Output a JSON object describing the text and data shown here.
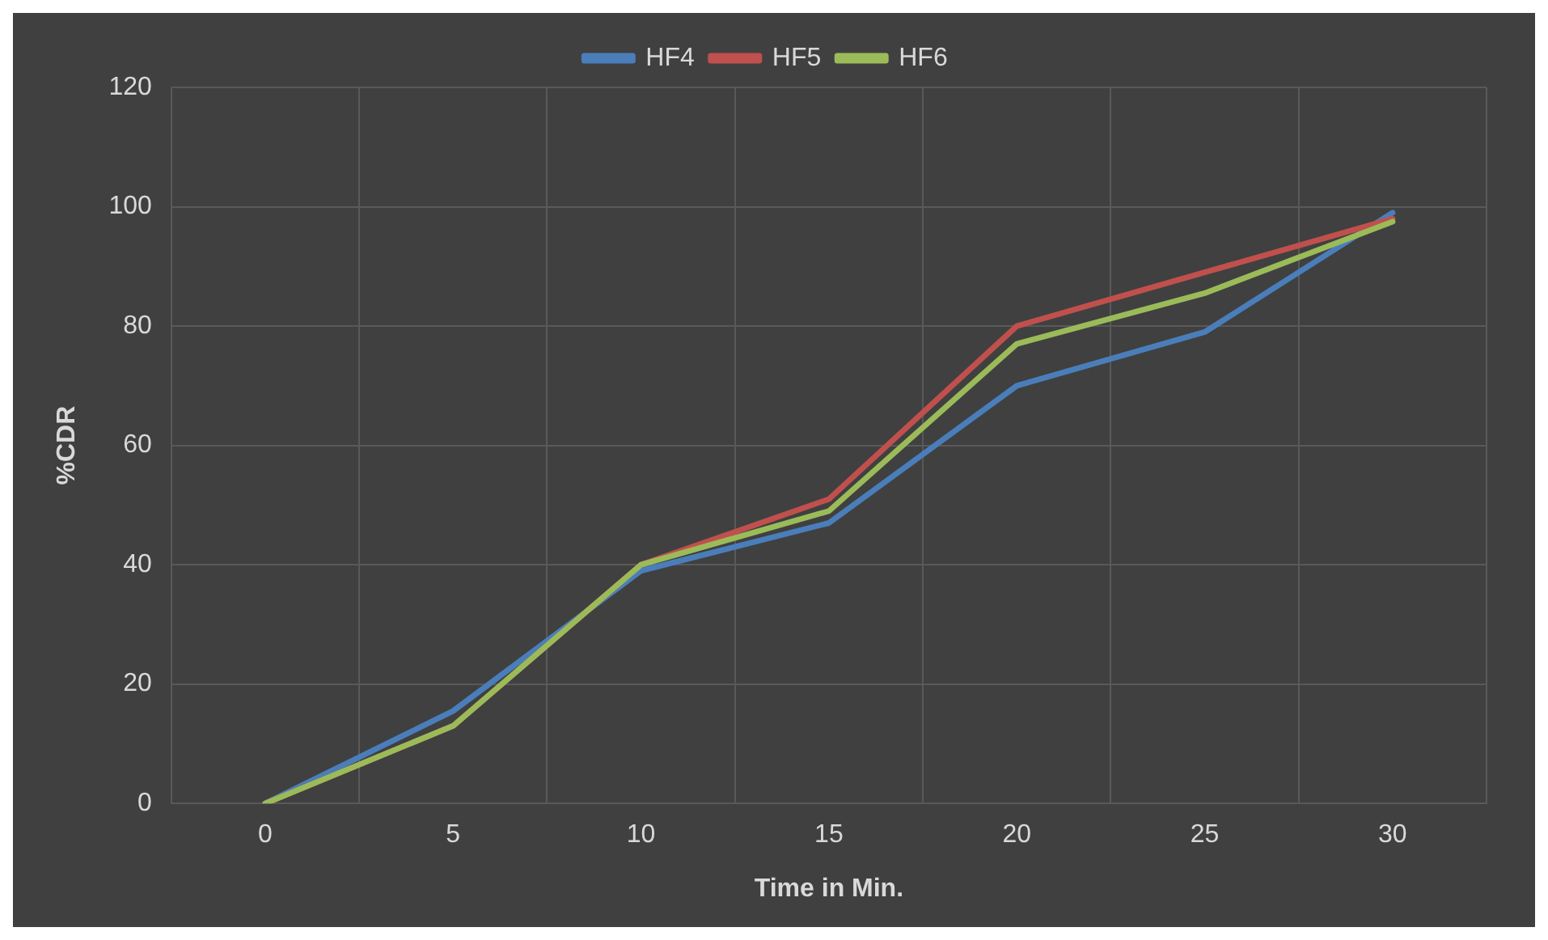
{
  "chart_data": {
    "type": "line",
    "xlabel": "Time in Min.",
    "ylabel": "%CDR",
    "categories": [
      "0",
      "5",
      "10",
      "15",
      "20",
      "25",
      "30"
    ],
    "series": [
      {
        "name": "HF4",
        "color": "#4a7ebb",
        "values": [
          0,
          15.5,
          39,
          47,
          70,
          79,
          99
        ]
      },
      {
        "name": "HF5",
        "color": "#c0504d",
        "values": [
          0,
          13,
          40,
          51,
          80,
          89,
          98
        ]
      },
      {
        "name": "HF6",
        "color": "#9bbb59",
        "values": [
          0,
          13,
          40,
          49,
          77,
          85.5,
          97.5
        ]
      }
    ],
    "ylim": [
      0,
      120
    ],
    "yticks": [
      0,
      20,
      40,
      60,
      80,
      100,
      120
    ],
    "grid": true,
    "legend": "top",
    "marker": "none",
    "line_style": "solid"
  }
}
